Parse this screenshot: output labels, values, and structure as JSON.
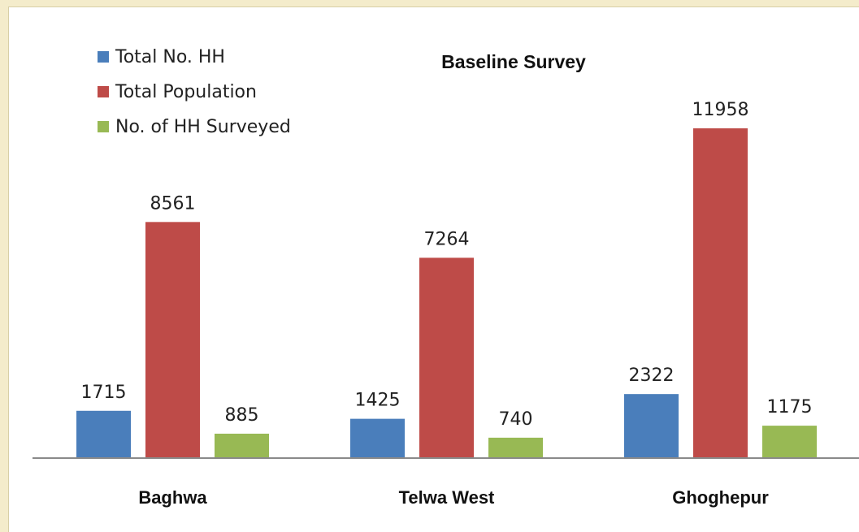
{
  "chart_data": {
    "type": "bar",
    "title": "Baseline Survey",
    "categories": [
      "Baghwa",
      "Telwa West",
      "Ghoghepur"
    ],
    "series": [
      {
        "name": "Total No. HH",
        "color": "#4a7ebb",
        "values": [
          1715,
          1425,
          2322
        ]
      },
      {
        "name": "Total Population",
        "color": "#be4b48",
        "values": [
          8561,
          7264,
          11958
        ]
      },
      {
        "name": "No. of HH Surveyed",
        "color": "#98b954",
        "values": [
          885,
          740,
          1175
        ]
      }
    ],
    "xlabel": "",
    "ylabel": "",
    "ylim": [
      0,
      14000
    ],
    "grid": false,
    "legend_position": "top-left",
    "data_labels": true
  }
}
